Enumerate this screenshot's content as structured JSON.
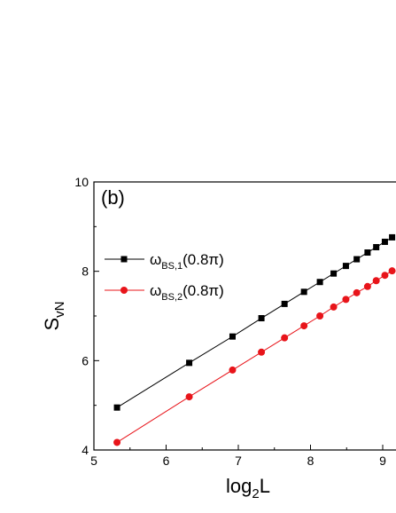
{
  "chart_data": {
    "type": "line",
    "panel_label": "(b)",
    "xlabel": {
      "main": "log",
      "sub": "2",
      "tail": "L"
    },
    "ylabel": {
      "main": "S",
      "sub": "vN"
    },
    "xlim": [
      5,
      9.2
    ],
    "ylim": [
      4,
      10
    ],
    "xticks": [
      5,
      6,
      7,
      8,
      9
    ],
    "yticks": [
      4,
      6,
      8,
      10
    ],
    "legend_position": "upper-left",
    "series": [
      {
        "name": {
          "main": "ω",
          "sub": "BS,1",
          "tail": "(0.8π)"
        },
        "color": "#000000",
        "marker": "square",
        "x": [
          5.32,
          6.32,
          6.92,
          7.32,
          7.64,
          7.91,
          8.13,
          8.32,
          8.49,
          8.64,
          8.79,
          8.91,
          9.03,
          9.13
        ],
        "y": [
          4.95,
          5.95,
          6.54,
          6.95,
          7.27,
          7.54,
          7.76,
          7.95,
          8.12,
          8.27,
          8.42,
          8.54,
          8.66,
          8.76
        ]
      },
      {
        "name": {
          "main": "ω",
          "sub": "BS,2",
          "tail": "(0.8π)"
        },
        "color": "#e8141a",
        "marker": "circle",
        "x": [
          5.32,
          6.32,
          6.92,
          7.32,
          7.64,
          7.91,
          8.13,
          8.32,
          8.49,
          8.64,
          8.79,
          8.91,
          9.03,
          9.13
        ],
        "y": [
          4.17,
          5.19,
          5.79,
          6.19,
          6.51,
          6.78,
          7.0,
          7.2,
          7.37,
          7.52,
          7.66,
          7.79,
          7.91,
          8.01
        ]
      }
    ]
  }
}
